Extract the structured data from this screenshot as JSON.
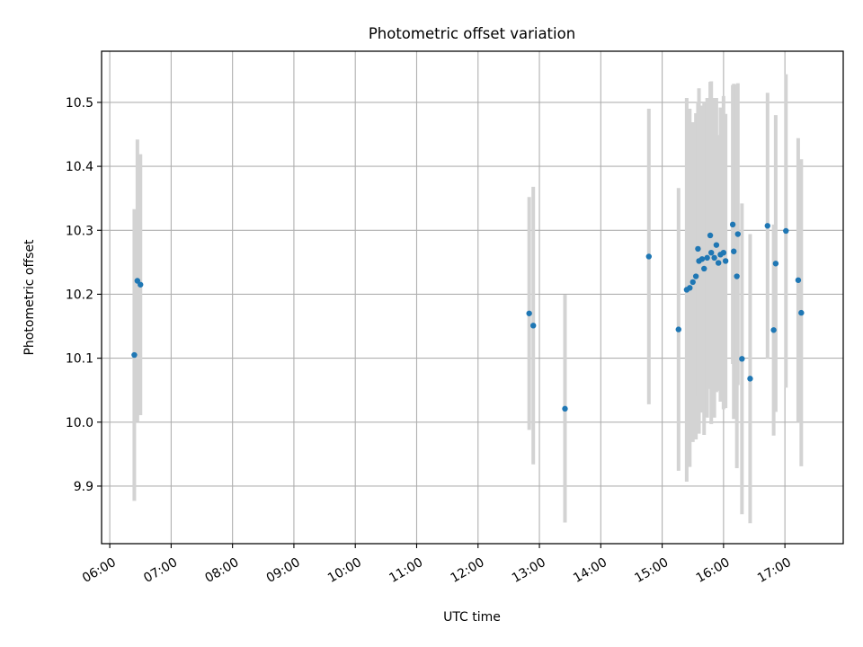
{
  "chart_data": {
    "type": "scatter",
    "title": "Photometric offset variation",
    "xlabel": "UTC time",
    "ylabel": "Photometric offset",
    "x_axis": "time",
    "xlim": [
      "05:52",
      "17:57"
    ],
    "ylim": [
      9.81,
      10.58
    ],
    "x_ticks": [
      "06:00",
      "07:00",
      "08:00",
      "09:00",
      "10:00",
      "11:00",
      "12:00",
      "13:00",
      "14:00",
      "15:00",
      "16:00",
      "17:00"
    ],
    "y_ticks": [
      9.9,
      10.0,
      10.1,
      10.2,
      10.3,
      10.4,
      10.5
    ],
    "grid": true,
    "colors": {
      "points": "#1f77b4",
      "error_bars": "#d3d3d3",
      "grid": "#b0b0b0"
    },
    "points": [
      {
        "x": "06:24",
        "y": 10.105,
        "err": 0.228
      },
      {
        "x": "06:27",
        "y": 10.221,
        "err": 0.221
      },
      {
        "x": "06:30",
        "y": 10.215,
        "err": 0.204
      },
      {
        "x": "12:50",
        "y": 10.17,
        "err": 0.182
      },
      {
        "x": "12:54",
        "y": 10.151,
        "err": 0.217
      },
      {
        "x": "13:25",
        "y": 10.021,
        "err": 0.178
      },
      {
        "x": "14:47",
        "y": 10.259,
        "err": 0.231
      },
      {
        "x": "15:16",
        "y": 10.145,
        "err": 0.221
      },
      {
        "x": "15:24",
        "y": 10.207,
        "err": 0.3
      },
      {
        "x": "15:27",
        "y": 10.21,
        "err": 0.28
      },
      {
        "x": "15:30",
        "y": 10.219,
        "err": 0.25
      },
      {
        "x": "15:33",
        "y": 10.228,
        "err": 0.255
      },
      {
        "x": "15:35",
        "y": 10.271,
        "err": 0.23
      },
      {
        "x": "15:36",
        "y": 10.252,
        "err": 0.27
      },
      {
        "x": "15:39",
        "y": 10.255,
        "err": 0.24
      },
      {
        "x": "15:41",
        "y": 10.24,
        "err": 0.26
      },
      {
        "x": "15:44",
        "y": 10.257,
        "err": 0.25
      },
      {
        "x": "15:47",
        "y": 10.292,
        "err": 0.24
      },
      {
        "x": "15:48",
        "y": 10.265,
        "err": 0.268
      },
      {
        "x": "15:51",
        "y": 10.257,
        "err": 0.25
      },
      {
        "x": "15:53",
        "y": 10.277,
        "err": 0.23
      },
      {
        "x": "15:55",
        "y": 10.249,
        "err": 0.2
      },
      {
        "x": "15:57",
        "y": 10.262,
        "err": 0.23
      },
      {
        "x": "16:00",
        "y": 10.265,
        "err": 0.245
      },
      {
        "x": "16:02",
        "y": 10.252,
        "err": 0.23
      },
      {
        "x": "16:09",
        "y": 10.309,
        "err": 0.218
      },
      {
        "x": "16:10",
        "y": 10.267,
        "err": 0.262
      },
      {
        "x": "16:13",
        "y": 10.228,
        "err": 0.3
      },
      {
        "x": "16:14",
        "y": 10.294,
        "err": 0.236
      },
      {
        "x": "16:18",
        "y": 10.099,
        "err": 0.243
      },
      {
        "x": "16:26",
        "y": 10.068,
        "err": 0.226
      },
      {
        "x": "16:43",
        "y": 10.307,
        "err": 0.208
      },
      {
        "x": "16:49",
        "y": 10.144,
        "err": 0.165
      },
      {
        "x": "16:51",
        "y": 10.248,
        "err": 0.232
      },
      {
        "x": "17:01",
        "y": 10.299,
        "err": 0.245
      },
      {
        "x": "17:13",
        "y": 10.222,
        "err": 0.222
      },
      {
        "x": "17:16",
        "y": 10.171,
        "err": 0.24
      }
    ]
  }
}
